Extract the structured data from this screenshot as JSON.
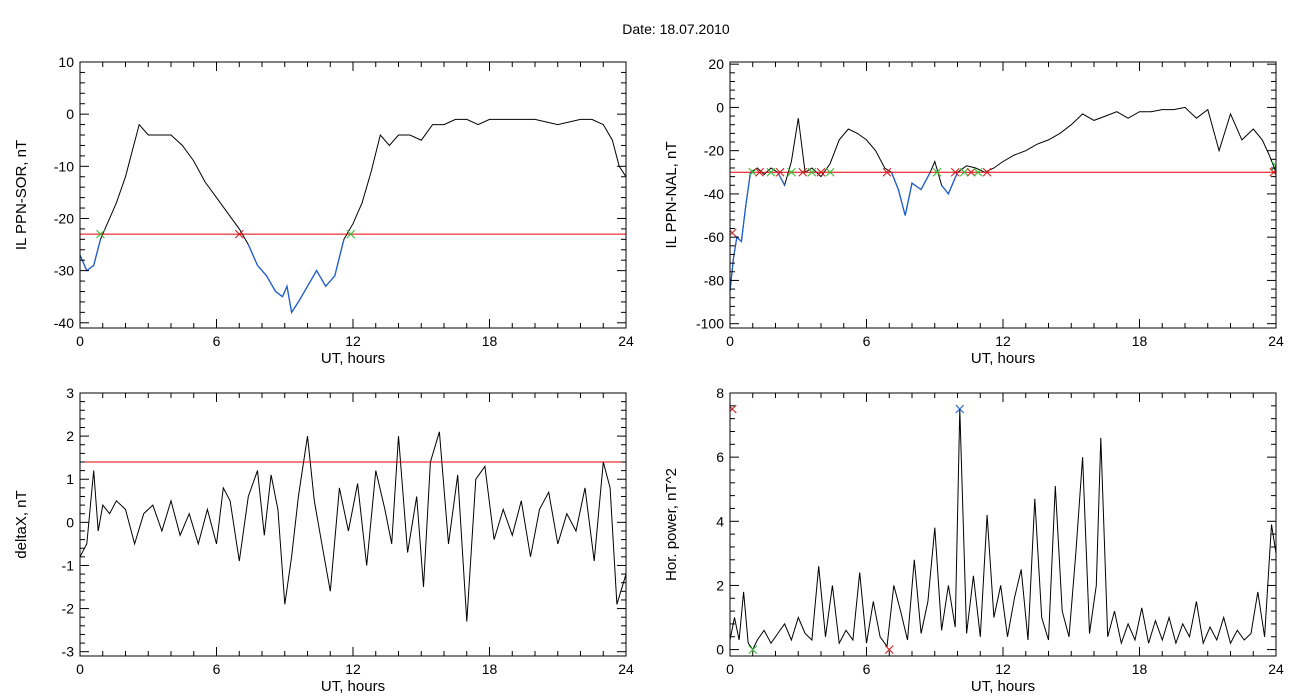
{
  "figure": {
    "title": "Date:  18.07.2010"
  },
  "chart_data": [
    {
      "id": "p1",
      "type": "line",
      "xlabel": "UT, hours",
      "ylabel": "IL PPN-SOR, nT",
      "xlim": [
        0,
        24
      ],
      "ylim": [
        -41,
        10
      ],
      "xticks": [
        0,
        6,
        12,
        18,
        24
      ],
      "yticks": [
        -40,
        -30,
        -20,
        -10,
        0,
        10
      ],
      "threshold": -23,
      "colors": {
        "line": "#000000",
        "below": "#1f5fd0",
        "threshold": "#e00000",
        "cross_up": "#30c030",
        "cross_down": "#d02020"
      },
      "series": [
        {
          "x": [
            0,
            0.3,
            0.6,
            0.9,
            1.2,
            1.6,
            2.0,
            2.3,
            2.6,
            3.0,
            3.5,
            4.0,
            4.5,
            5.0,
            5.5,
            6.0,
            6.5,
            7.0,
            7.4,
            7.8,
            8.2,
            8.6,
            8.9,
            9.1,
            9.3,
            9.6,
            10.0,
            10.4,
            10.8,
            11.2,
            11.6,
            12.0,
            12.4,
            12.8,
            13.2,
            13.6,
            14.0,
            14.5,
            15.0,
            15.5,
            16.0,
            16.5,
            17.0,
            17.5,
            18.0,
            19.0,
            20.0,
            21.0,
            22.0,
            22.5,
            23.0,
            23.4,
            23.7,
            24.0
          ],
          "y": [
            -27,
            -30,
            -29,
            -24,
            -21,
            -17,
            -12,
            -7,
            -2,
            -4,
            -4,
            -4,
            -6,
            -9,
            -13,
            -16,
            -19,
            -22,
            -25,
            -29,
            -31,
            -34,
            -35,
            -33,
            -38,
            -36,
            -33,
            -30,
            -33,
            -31,
            -24,
            -21,
            -17,
            -11,
            -4,
            -6,
            -4,
            -4,
            -5,
            -2,
            -2,
            -1,
            -1,
            -2,
            -1,
            -1,
            -1,
            -2,
            -1,
            -1,
            -2,
            -5,
            -10,
            -12
          ]
        }
      ],
      "markers": [
        {
          "x": 0.9,
          "y": -23,
          "kind": "cross_up"
        },
        {
          "x": 7.0,
          "y": -23,
          "kind": "cross_down"
        },
        {
          "x": 11.9,
          "y": -23,
          "kind": "cross_up"
        }
      ]
    },
    {
      "id": "p2",
      "type": "line",
      "xlabel": "UT, hours",
      "ylabel": "IL PPN-NAL, nT",
      "xlim": [
        0,
        24
      ],
      "ylim": [
        -102,
        21
      ],
      "xticks": [
        0,
        6,
        12,
        18,
        24
      ],
      "yticks": [
        -100,
        -80,
        -60,
        -40,
        -20,
        0,
        20
      ],
      "threshold": -30,
      "colors": {
        "line": "#000000",
        "below": "#1f5fd0",
        "threshold": "#e00000",
        "cross_up": "#30c030",
        "cross_down": "#d02020"
      },
      "series": [
        {
          "x": [
            0,
            0.15,
            0.3,
            0.5,
            0.7,
            0.9,
            1.2,
            1.5,
            1.8,
            2.1,
            2.4,
            2.7,
            3.0,
            3.3,
            3.6,
            4.0,
            4.4,
            4.8,
            5.2,
            5.6,
            6.0,
            6.4,
            6.8,
            7.1,
            7.4,
            7.7,
            8.0,
            8.4,
            8.8,
            9.0,
            9.3,
            9.6,
            10.0,
            10.4,
            10.8,
            11.2,
            11.6,
            12.0,
            12.5,
            13.0,
            13.5,
            14.0,
            14.5,
            15.0,
            15.5,
            16.0,
            16.5,
            17.0,
            17.5,
            18.0,
            18.5,
            19.0,
            19.5,
            20.0,
            20.5,
            21.0,
            21.5,
            22.0,
            22.5,
            23.0,
            23.4,
            23.7,
            24.0
          ],
          "y": [
            -85,
            -70,
            -60,
            -62,
            -45,
            -30,
            -28,
            -31,
            -28,
            -30,
            -36,
            -25,
            -5,
            -30,
            -28,
            -32,
            -26,
            -15,
            -10,
            -12,
            -15,
            -20,
            -28,
            -30,
            -38,
            -50,
            -35,
            -38,
            -30,
            -25,
            -36,
            -40,
            -30,
            -27,
            -28,
            -30,
            -28,
            -25,
            -22,
            -20,
            -17,
            -15,
            -12,
            -8,
            -3,
            -6,
            -4,
            -2,
            -5,
            -2,
            -2,
            -1,
            -1,
            0,
            -5,
            -1,
            -20,
            -3,
            -15,
            -10,
            -15,
            -22,
            -30
          ]
        }
      ],
      "markers": [
        {
          "x": 0.1,
          "y": -58,
          "kind": "cross_down"
        },
        {
          "x": 1.0,
          "y": -30,
          "kind": "cross_up"
        },
        {
          "x": 1.3,
          "y": -30,
          "kind": "cross_down"
        },
        {
          "x": 1.8,
          "y": -30,
          "kind": "cross_up"
        },
        {
          "x": 2.2,
          "y": -30,
          "kind": "cross_down"
        },
        {
          "x": 2.7,
          "y": -30,
          "kind": "cross_up"
        },
        {
          "x": 3.2,
          "y": -30,
          "kind": "cross_down"
        },
        {
          "x": 3.6,
          "y": -30,
          "kind": "cross_up"
        },
        {
          "x": 4.0,
          "y": -30,
          "kind": "cross_down"
        },
        {
          "x": 4.4,
          "y": -30,
          "kind": "cross_up"
        },
        {
          "x": 6.9,
          "y": -30,
          "kind": "cross_down"
        },
        {
          "x": 9.1,
          "y": -30,
          "kind": "cross_up"
        },
        {
          "x": 9.9,
          "y": -30,
          "kind": "cross_down"
        },
        {
          "x": 10.3,
          "y": -30,
          "kind": "cross_up"
        },
        {
          "x": 10.6,
          "y": -30,
          "kind": "cross_down"
        },
        {
          "x": 10.9,
          "y": -30,
          "kind": "cross_up"
        },
        {
          "x": 11.3,
          "y": -30,
          "kind": "cross_down"
        },
        {
          "x": 23.9,
          "y": -30,
          "kind": "cross_down"
        },
        {
          "x": 24.0,
          "y": -27,
          "kind": "cross_up"
        }
      ]
    },
    {
      "id": "p3",
      "type": "line",
      "xlabel": "UT, hours",
      "ylabel": "deltaX, nT",
      "xlim": [
        0,
        24
      ],
      "ylim": [
        -3.1,
        3.0
      ],
      "xticks": [
        0,
        6,
        12,
        18,
        24
      ],
      "yticks": [
        -3,
        -2,
        -1,
        0,
        1,
        2,
        3
      ],
      "threshold": 1.4,
      "colors": {
        "line": "#000000",
        "threshold": "#e00000"
      },
      "series": [
        {
          "x": [
            0,
            0.3,
            0.6,
            0.8,
            1.0,
            1.3,
            1.6,
            2.0,
            2.4,
            2.8,
            3.2,
            3.6,
            4.0,
            4.4,
            4.8,
            5.2,
            5.6,
            6.0,
            6.3,
            6.6,
            7.0,
            7.4,
            7.8,
            8.1,
            8.4,
            8.7,
            9.0,
            9.3,
            9.6,
            10.0,
            10.3,
            10.6,
            11.0,
            11.4,
            11.8,
            12.2,
            12.6,
            13.0,
            13.4,
            13.7,
            14.0,
            14.4,
            14.8,
            15.1,
            15.4,
            15.8,
            16.2,
            16.6,
            17.0,
            17.4,
            17.8,
            18.2,
            18.6,
            19.0,
            19.4,
            19.8,
            20.2,
            20.6,
            21.0,
            21.4,
            21.8,
            22.2,
            22.6,
            23.0,
            23.3,
            23.6,
            24.0
          ],
          "y": [
            -0.8,
            -0.5,
            1.2,
            -0.2,
            0.4,
            0.2,
            0.5,
            0.3,
            -0.5,
            0.2,
            0.4,
            -0.2,
            0.5,
            -0.3,
            0.2,
            -0.5,
            0.3,
            -0.5,
            0.8,
            0.5,
            -0.9,
            0.6,
            1.2,
            -0.3,
            1.1,
            0.3,
            -1.9,
            -0.8,
            0.6,
            2.0,
            0.5,
            -0.4,
            -1.6,
            0.8,
            -0.2,
            0.9,
            -1.0,
            1.2,
            0.3,
            -0.5,
            2.0,
            -0.7,
            0.6,
            -1.5,
            1.4,
            2.1,
            -0.5,
            1.1,
            -2.3,
            1.0,
            1.3,
            -0.4,
            0.3,
            -0.3,
            0.5,
            -0.8,
            0.3,
            0.7,
            -0.5,
            0.2,
            -0.2,
            0.8,
            -0.9,
            1.4,
            0.8,
            -1.9,
            -1.2
          ]
        }
      ]
    },
    {
      "id": "p4",
      "type": "line",
      "xlabel": "UT, hours",
      "ylabel": "Hor. power, nT^2",
      "xlim": [
        0,
        24
      ],
      "ylim": [
        -0.2,
        8.0
      ],
      "xticks": [
        0,
        6,
        12,
        18,
        24
      ],
      "yticks": [
        0,
        2,
        4,
        6,
        8
      ],
      "colors": {
        "line": "#000000",
        "max_marker": "#1f5fd0",
        "cross_up": "#30c030",
        "cross_down": "#d02020"
      },
      "series": [
        {
          "x": [
            0,
            0.2,
            0.4,
            0.6,
            0.8,
            1.0,
            1.2,
            1.5,
            1.8,
            2.1,
            2.4,
            2.7,
            3.0,
            3.3,
            3.6,
            3.9,
            4.2,
            4.5,
            4.8,
            5.1,
            5.4,
            5.7,
            6.0,
            6.3,
            6.6,
            6.9,
            7.2,
            7.5,
            7.8,
            8.1,
            8.4,
            8.7,
            9.0,
            9.3,
            9.6,
            9.9,
            10.1,
            10.4,
            10.7,
            11.0,
            11.3,
            11.6,
            11.9,
            12.2,
            12.5,
            12.8,
            13.1,
            13.4,
            13.7,
            14.0,
            14.3,
            14.6,
            14.9,
            15.2,
            15.5,
            15.8,
            16.1,
            16.3,
            16.6,
            16.9,
            17.2,
            17.5,
            17.8,
            18.1,
            18.4,
            18.7,
            19.0,
            19.3,
            19.6,
            19.9,
            20.2,
            20.5,
            20.8,
            21.1,
            21.4,
            21.7,
            22.0,
            22.3,
            22.6,
            22.9,
            23.2,
            23.5,
            23.8,
            24.0
          ],
          "y": [
            0.3,
            1.0,
            0.3,
            1.8,
            0.2,
            0.0,
            0.3,
            0.6,
            0.2,
            0.5,
            0.8,
            0.3,
            1.0,
            0.5,
            0.3,
            2.6,
            0.4,
            2.0,
            0.2,
            0.6,
            0.3,
            2.4,
            0.2,
            1.5,
            0.4,
            0.1,
            2.0,
            1.2,
            0.3,
            2.8,
            0.5,
            1.5,
            3.8,
            0.6,
            2.0,
            0.7,
            7.5,
            0.5,
            2.3,
            0.4,
            4.2,
            1.0,
            2.0,
            0.4,
            1.6,
            2.5,
            0.3,
            4.7,
            1.0,
            0.3,
            5.1,
            1.2,
            0.4,
            3.0,
            6.0,
            0.5,
            2.0,
            6.6,
            0.4,
            1.2,
            0.2,
            0.8,
            0.3,
            1.3,
            0.2,
            0.9,
            0.3,
            1.0,
            0.2,
            0.8,
            0.4,
            1.5,
            0.2,
            0.7,
            0.3,
            1.0,
            0.2,
            0.6,
            0.3,
            0.5,
            1.8,
            0.4,
            3.9,
            3.0
          ]
        }
      ],
      "markers": [
        {
          "x": 0.1,
          "y": 7.5,
          "kind": "cross_down"
        },
        {
          "x": 10.1,
          "y": 7.5,
          "kind": "max_marker"
        },
        {
          "x": 7.0,
          "y": 0.0,
          "kind": "cross_down"
        },
        {
          "x": 1.0,
          "y": 0.0,
          "kind": "cross_up"
        }
      ]
    }
  ]
}
